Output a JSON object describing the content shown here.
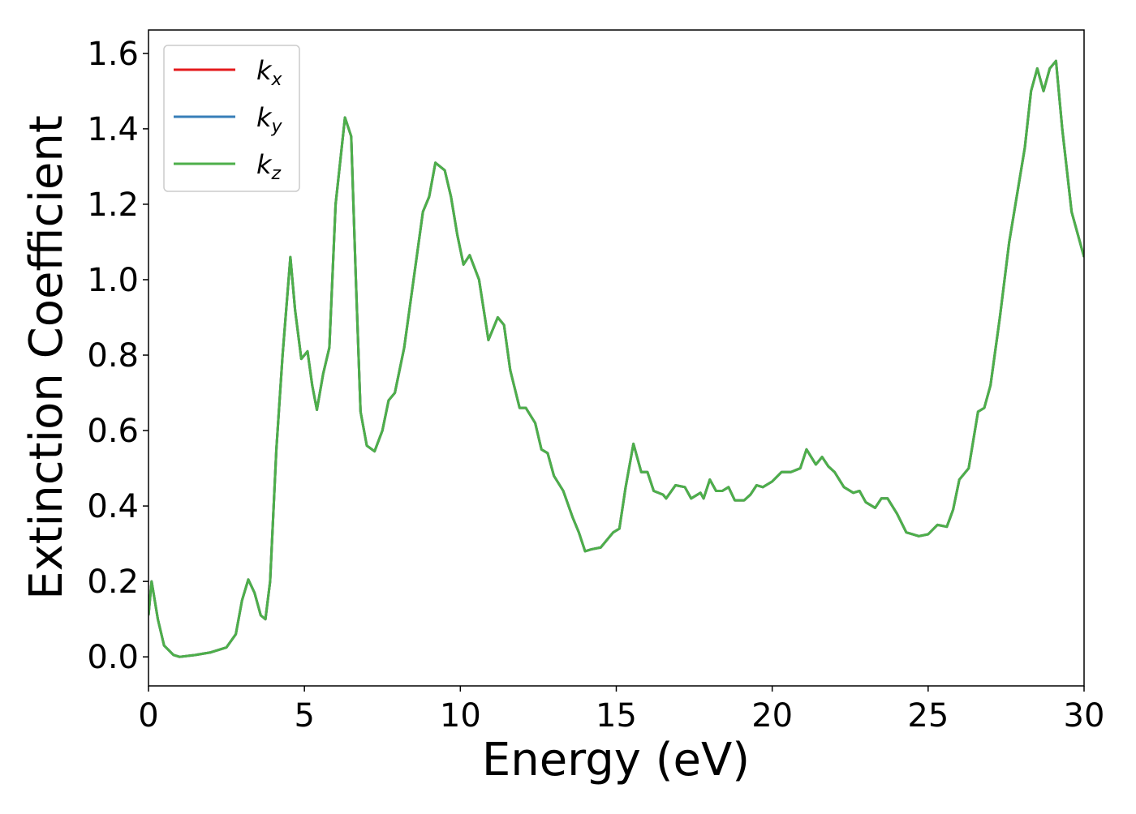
{
  "chart_data": {
    "type": "line",
    "xlabel": "Energy (eV)",
    "ylabel": "Extinction Coefficient",
    "x": [
      0,
      0.1,
      0.3,
      0.5,
      0.8,
      1.0,
      1.5,
      2.0,
      2.5,
      2.8,
      3.0,
      3.2,
      3.4,
      3.6,
      3.75,
      3.9,
      4.1,
      4.3,
      4.55,
      4.7,
      4.9,
      5.1,
      5.25,
      5.4,
      5.6,
      5.8,
      6.0,
      6.3,
      6.5,
      6.65,
      6.8,
      7.0,
      7.25,
      7.5,
      7.7,
      7.9,
      8.2,
      8.5,
      8.8,
      9.0,
      9.2,
      9.5,
      9.7,
      9.9,
      10.1,
      10.3,
      10.6,
      10.9,
      11.2,
      11.4,
      11.6,
      11.9,
      12.1,
      12.4,
      12.6,
      12.8,
      13.0,
      13.3,
      13.6,
      13.8,
      14.0,
      14.2,
      14.5,
      14.9,
      15.1,
      15.3,
      15.55,
      15.8,
      16.0,
      16.2,
      16.5,
      16.6,
      16.9,
      17.2,
      17.4,
      17.7,
      17.8,
      18.0,
      18.2,
      18.4,
      18.6,
      18.8,
      19.1,
      19.3,
      19.5,
      19.7,
      20.0,
      20.3,
      20.6,
      20.9,
      21.1,
      21.4,
      21.6,
      21.8,
      22.0,
      22.3,
      22.6,
      22.8,
      23.0,
      23.3,
      23.5,
      23.7,
      24.0,
      24.3,
      24.5,
      24.7,
      25.0,
      25.3,
      25.6,
      25.8,
      26.0,
      26.3,
      26.6,
      26.8,
      27.0,
      27.3,
      27.6,
      27.9,
      28.1,
      28.3,
      28.5,
      28.7,
      28.9,
      29.1,
      29.3,
      29.6,
      30.0
    ],
    "series": [
      {
        "name": "kx",
        "color": "#e41a1c",
        "values": [
          0.11,
          0.2,
          0.1,
          0.03,
          0.005,
          0.0,
          0.005,
          0.012,
          0.025,
          0.06,
          0.15,
          0.205,
          0.17,
          0.11,
          0.1,
          0.2,
          0.55,
          0.8,
          1.06,
          0.92,
          0.79,
          0.81,
          0.72,
          0.655,
          0.75,
          0.82,
          1.2,
          1.43,
          1.38,
          1.0,
          0.65,
          0.56,
          0.545,
          0.6,
          0.68,
          0.7,
          0.82,
          1.0,
          1.18,
          1.22,
          1.31,
          1.29,
          1.22,
          1.12,
          1.04,
          1.065,
          1.0,
          0.84,
          0.9,
          0.88,
          0.76,
          0.66,
          0.66,
          0.62,
          0.55,
          0.54,
          0.48,
          0.44,
          0.37,
          0.33,
          0.28,
          0.285,
          0.29,
          0.33,
          0.34,
          0.45,
          0.565,
          0.49,
          0.49,
          0.44,
          0.43,
          0.42,
          0.455,
          0.45,
          0.42,
          0.435,
          0.42,
          0.47,
          0.44,
          0.44,
          0.45,
          0.415,
          0.415,
          0.43,
          0.455,
          0.45,
          0.465,
          0.49,
          0.49,
          0.5,
          0.55,
          0.51,
          0.53,
          0.505,
          0.49,
          0.45,
          0.435,
          0.44,
          0.41,
          0.395,
          0.42,
          0.42,
          0.38,
          0.33,
          0.325,
          0.32,
          0.325,
          0.35,
          0.345,
          0.39,
          0.47,
          0.5,
          0.65,
          0.66,
          0.72,
          0.9,
          1.1,
          1.25,
          1.35,
          1.5,
          1.56,
          1.5,
          1.56,
          1.58,
          1.4,
          1.18,
          1.06
        ]
      },
      {
        "name": "ky",
        "color": "#377eb8",
        "values": [
          0.11,
          0.2,
          0.1,
          0.03,
          0.005,
          0.0,
          0.005,
          0.012,
          0.025,
          0.06,
          0.15,
          0.205,
          0.17,
          0.11,
          0.1,
          0.2,
          0.55,
          0.8,
          1.06,
          0.92,
          0.79,
          0.81,
          0.72,
          0.655,
          0.75,
          0.82,
          1.2,
          1.43,
          1.38,
          1.0,
          0.65,
          0.56,
          0.545,
          0.6,
          0.68,
          0.7,
          0.82,
          1.0,
          1.18,
          1.22,
          1.31,
          1.29,
          1.22,
          1.12,
          1.04,
          1.065,
          1.0,
          0.84,
          0.9,
          0.88,
          0.76,
          0.66,
          0.66,
          0.62,
          0.55,
          0.54,
          0.48,
          0.44,
          0.37,
          0.33,
          0.28,
          0.285,
          0.29,
          0.33,
          0.34,
          0.45,
          0.565,
          0.49,
          0.49,
          0.44,
          0.43,
          0.42,
          0.455,
          0.45,
          0.42,
          0.435,
          0.42,
          0.47,
          0.44,
          0.44,
          0.45,
          0.415,
          0.415,
          0.43,
          0.455,
          0.45,
          0.465,
          0.49,
          0.49,
          0.5,
          0.55,
          0.51,
          0.53,
          0.505,
          0.49,
          0.45,
          0.435,
          0.44,
          0.41,
          0.395,
          0.42,
          0.42,
          0.38,
          0.33,
          0.325,
          0.32,
          0.325,
          0.35,
          0.345,
          0.39,
          0.47,
          0.5,
          0.65,
          0.66,
          0.72,
          0.9,
          1.1,
          1.25,
          1.35,
          1.5,
          1.56,
          1.5,
          1.56,
          1.58,
          1.4,
          1.18,
          1.06
        ]
      },
      {
        "name": "kz",
        "color": "#4daf4a",
        "values": [
          0.11,
          0.2,
          0.1,
          0.03,
          0.005,
          0.0,
          0.005,
          0.012,
          0.025,
          0.06,
          0.15,
          0.205,
          0.17,
          0.11,
          0.1,
          0.2,
          0.55,
          0.8,
          1.06,
          0.92,
          0.79,
          0.81,
          0.72,
          0.655,
          0.75,
          0.82,
          1.2,
          1.43,
          1.38,
          1.0,
          0.65,
          0.56,
          0.545,
          0.6,
          0.68,
          0.7,
          0.82,
          1.0,
          1.18,
          1.22,
          1.31,
          1.29,
          1.22,
          1.12,
          1.04,
          1.065,
          1.0,
          0.84,
          0.9,
          0.88,
          0.76,
          0.66,
          0.66,
          0.62,
          0.55,
          0.54,
          0.48,
          0.44,
          0.37,
          0.33,
          0.28,
          0.285,
          0.29,
          0.33,
          0.34,
          0.45,
          0.565,
          0.49,
          0.49,
          0.44,
          0.43,
          0.42,
          0.455,
          0.45,
          0.42,
          0.435,
          0.42,
          0.47,
          0.44,
          0.44,
          0.45,
          0.415,
          0.415,
          0.43,
          0.455,
          0.45,
          0.465,
          0.49,
          0.49,
          0.5,
          0.55,
          0.51,
          0.53,
          0.505,
          0.49,
          0.45,
          0.435,
          0.44,
          0.41,
          0.395,
          0.42,
          0.42,
          0.38,
          0.33,
          0.325,
          0.32,
          0.325,
          0.35,
          0.345,
          0.39,
          0.47,
          0.5,
          0.65,
          0.66,
          0.72,
          0.9,
          1.1,
          1.25,
          1.35,
          1.5,
          1.56,
          1.5,
          1.56,
          1.58,
          1.4,
          1.18,
          1.06
        ]
      }
    ],
    "xlim": [
      0,
      30
    ],
    "xticks": [
      0,
      5,
      10,
      15,
      20,
      25,
      30
    ],
    "ylim": [
      -0.077,
      1.662
    ],
    "yticks": [
      {
        "value": 0,
        "label": "0.0"
      },
      0.2,
      0.4,
      0.6,
      0.8,
      {
        "value": 1,
        "label": "1.0"
      },
      1.2,
      1.4,
      1.6
    ],
    "legend": "upper left",
    "grid": false
  }
}
